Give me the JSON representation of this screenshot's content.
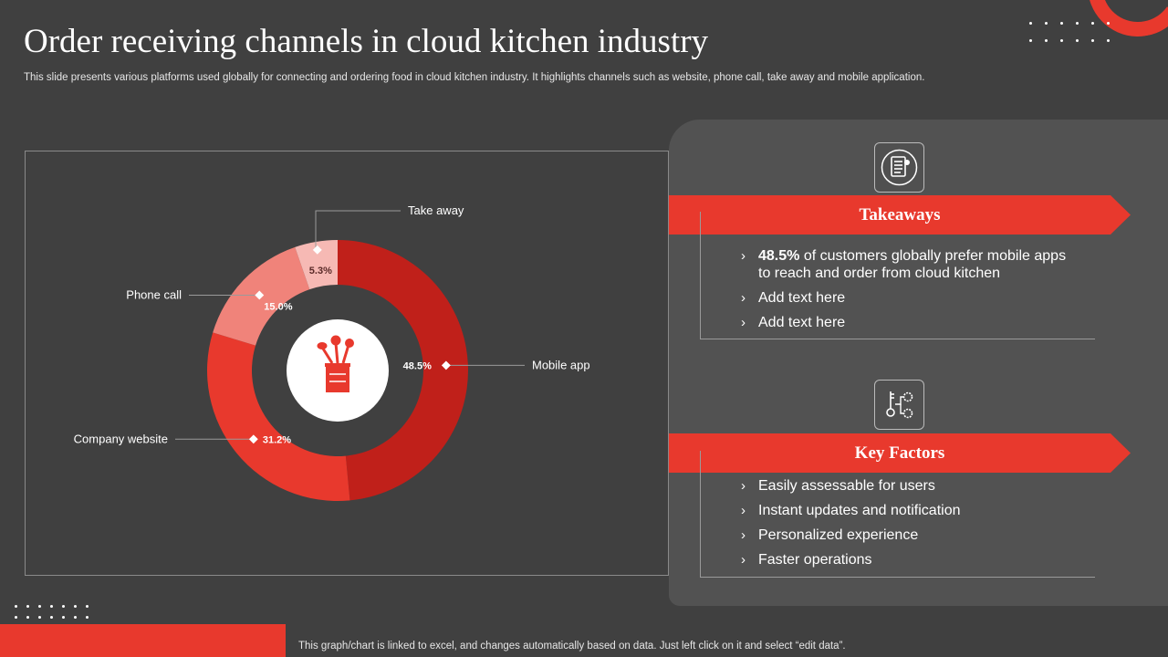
{
  "slide": {
    "title": "Order receiving channels in cloud kitchen industry",
    "subtitle": "This slide presents various platforms used globally for connecting and ordering food in cloud kitchen industry. It highlights channels such as website, phone call, take away and mobile application.",
    "footer_note": "This graph/chart is linked to excel,  and changes automatically based on data. Just left click on it and select “edit data”.",
    "accent_color": "#e8392d",
    "background_color": "#404040"
  },
  "chart_data": {
    "type": "pie",
    "variant": "donut",
    "title": "",
    "categories": [
      "Mobile app",
      "Company website",
      "Phone call",
      "Take away"
    ],
    "values": [
      48.5,
      31.2,
      15.0,
      5.3
    ],
    "value_labels": [
      "48.5%",
      "31.2%",
      "15.0%",
      "5.3%"
    ],
    "colors": [
      "#c0201a",
      "#e8392d",
      "#f0837a",
      "#f6b9b4"
    ],
    "center_icon": "kitchen-utensils-icon"
  },
  "takeaways": {
    "title": "Takeaways",
    "icon": "checklist-document-icon",
    "items": [
      {
        "bold": "48.5%",
        "text": " of customers globally prefer mobile apps",
        "text2": "to reach and order from cloud kitchen"
      },
      {
        "bold": "",
        "text": "Add text here",
        "text2": ""
      },
      {
        "bold": "",
        "text": "Add text here",
        "text2": ""
      }
    ]
  },
  "key_factors": {
    "title": "Key Factors",
    "icon": "key-gears-icon",
    "items": [
      "Easily assessable for users",
      "Instant updates and notification",
      "Personalized experience",
      "Faster operations"
    ]
  }
}
